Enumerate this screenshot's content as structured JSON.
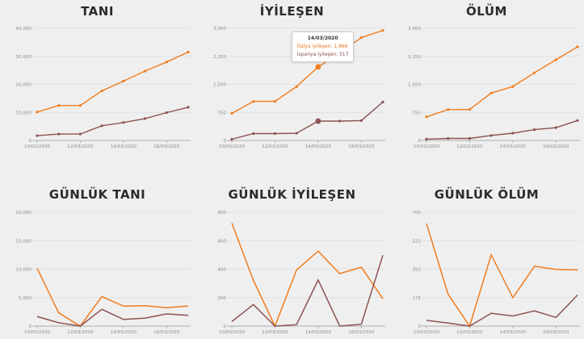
{
  "colors": {
    "italy": "#f07c1e",
    "spain": "#8c5252",
    "grid": "#dcdcdc",
    "axis": "#8a8a8a",
    "background": "#efefef"
  },
  "chart_data": [
    {
      "type": "line",
      "title": "TANI",
      "x": [
        "10/03/2020",
        "11/03/2020",
        "12/03/2020",
        "13/03/2020",
        "14/03/2020",
        "15/03/2020",
        "16/03/2020",
        "17/03/2020"
      ],
      "xticks": [
        "10/03/2020",
        "12/03/2020",
        "14/03/2020",
        "16/03/2020"
      ],
      "yticks": [
        "0",
        "10,000",
        "20,000",
        "30,000",
        "40,000"
      ],
      "ylim": [
        0,
        40000
      ],
      "series": [
        {
          "name": "İtalya",
          "values": [
            10149,
            12462,
            12462,
            17660,
            21157,
            24747,
            27980,
            31506
          ]
        },
        {
          "name": "İspanya",
          "values": [
            1695,
            2277,
            2277,
            5232,
            6391,
            7798,
            9942,
            11826
          ]
        }
      ]
    },
    {
      "type": "line",
      "title": "İYİLEŞEN",
      "x": [
        "10/03/2020",
        "11/03/2020",
        "12/03/2020",
        "13/03/2020",
        "14/03/2020",
        "15/03/2020",
        "16/03/2020",
        "17/03/2020"
      ],
      "xticks": [
        "10/03/2020",
        "12/03/2020",
        "14/03/2020",
        "16/03/2020"
      ],
      "yticks": [
        "0",
        "750",
        "1,500",
        "2,250",
        "3,000"
      ],
      "ylim": [
        0,
        3000
      ],
      "series": [
        {
          "name": "İtalya",
          "values": [
            724,
            1045,
            1045,
            1439,
            1966,
            2335,
            2749,
            2941
          ]
        },
        {
          "name": "İspanya",
          "values": [
            32,
            183,
            183,
            193,
            517,
            517,
            530,
            1028
          ]
        }
      ],
      "tooltip": {
        "date": "14/03/2020",
        "italy": "İtalya iyileşen: 1,966",
        "spain": "İspanya iyileşen: 517",
        "index": 4
      }
    },
    {
      "type": "line",
      "title": "ÖLÜM",
      "x": [
        "10/03/2020",
        "11/03/2020",
        "12/03/2020",
        "13/03/2020",
        "14/03/2020",
        "15/03/2020",
        "16/03/2020",
        "17/03/2020"
      ],
      "xticks": [
        "10/03/2020",
        "12/03/2020",
        "14/03/2020",
        "16/03/2020"
      ],
      "yticks": [
        "0",
        "750",
        "1,500",
        "2,250",
        "3,000"
      ],
      "ylim": [
        0,
        3000
      ],
      "series": [
        {
          "name": "İtalya",
          "values": [
            631,
            827,
            827,
            1266,
            1441,
            1809,
            2158,
            2503
          ]
        },
        {
          "name": "İspanya",
          "values": [
            35,
            54,
            54,
            133,
            195,
            289,
            342,
            533
          ]
        }
      ]
    },
    {
      "type": "line",
      "title": "GÜNLÜK TANI",
      "x": [
        "10/03/2020",
        "11/03/2020",
        "12/03/2020",
        "13/03/2020",
        "14/03/2020",
        "15/03/2020",
        "16/03/2020",
        "17/03/2020"
      ],
      "xticks": [
        "10/03/2020",
        "12/03/2020",
        "14/03/2020",
        "16/03/2020"
      ],
      "yticks": [
        "0",
        "5,000",
        "10,000",
        "15,000",
        "20,000"
      ],
      "ylim": [
        0,
        20000
      ],
      "series": [
        {
          "name": "İtalya",
          "values": [
            10149,
            2313,
            0,
            5198,
            3497,
            3590,
            3233,
            3526
          ]
        },
        {
          "name": "İspanya",
          "values": [
            1695,
            582,
            0,
            2955,
            1159,
            1407,
            2144,
            1884
          ]
        }
      ]
    },
    {
      "type": "line",
      "title": "GÜNLÜK İYİLEŞEN",
      "x": [
        "10/03/2020",
        "11/03/2020",
        "12/03/2020",
        "13/03/2020",
        "14/03/2020",
        "15/03/2020",
        "16/03/2020",
        "17/03/2020"
      ],
      "xticks": [
        "10/03/2020",
        "12/03/2020",
        "14/03/2020",
        "16/03/2020"
      ],
      "yticks": [
        "0",
        "200",
        "400",
        "600",
        "800"
      ],
      "ylim": [
        0,
        800
      ],
      "series": [
        {
          "name": "İtalya",
          "values": [
            724,
            321,
            0,
            394,
            527,
            369,
            414,
            192
          ]
        },
        {
          "name": "İspanya",
          "values": [
            32,
            151,
            0,
            10,
            324,
            0,
            13,
            498
          ]
        }
      ]
    },
    {
      "type": "line",
      "title": "GÜNLÜK ÖLÜM",
      "x": [
        "10/03/2020",
        "11/03/2020",
        "12/03/2020",
        "13/03/2020",
        "14/03/2020",
        "15/03/2020",
        "16/03/2020",
        "17/03/2020"
      ],
      "xticks": [
        "10/03/2020",
        "12/03/2020",
        "14/03/2020",
        "16/03/2020"
      ],
      "yticks": [
        "0",
        "175",
        "350",
        "525",
        "700"
      ],
      "ylim": [
        0,
        700
      ],
      "series": [
        {
          "name": "İtalya",
          "values": [
            631,
            196,
            0,
            439,
            175,
            368,
            349,
            345
          ]
        },
        {
          "name": "İspanya",
          "values": [
            35,
            19,
            0,
            79,
            62,
            94,
            53,
            191
          ]
        }
      ]
    }
  ]
}
